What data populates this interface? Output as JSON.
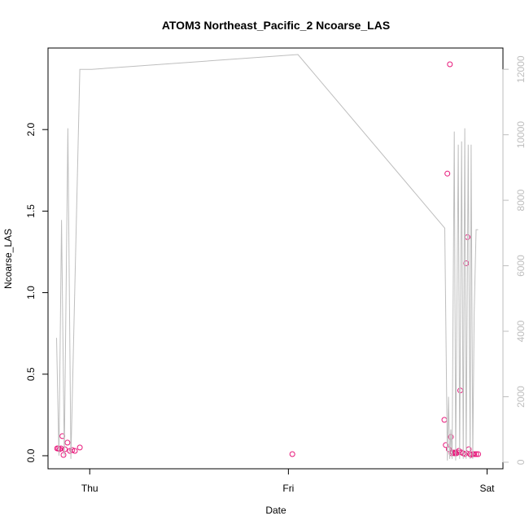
{
  "chart_data": {
    "type": "scatter",
    "title": "ATOM3 Northeast_Pacific_2 Ncoarse_LAS",
    "xlabel": "Date",
    "ylabel": "Ncoarse_LAS",
    "x_ticks": [
      {
        "label": "Thu",
        "value": 1.0
      },
      {
        "label": "Fri",
        "value": 2.0
      },
      {
        "label": "Sat",
        "value": 3.0
      }
    ],
    "xlim": [
      0.79,
      3.08
    ],
    "ylim": [
      -0.08,
      2.5
    ],
    "y_ticks": [
      0.0,
      0.5,
      1.0,
      1.5,
      2.0
    ],
    "y_tick_labels": [
      "0.0",
      "0.5",
      "1.0",
      "1.5",
      "2.0"
    ],
    "y2lim": [
      -200,
      12650
    ],
    "y2_ticks": [
      0,
      2000,
      4000,
      6000,
      8000,
      10000,
      12000
    ],
    "y2_tick_labels": [
      "0",
      "2000",
      "4000",
      "6000",
      "8000",
      "10000",
      "12000"
    ],
    "colors": {
      "points": "#e8177a",
      "line": "#bebebe",
      "axis": "#000000",
      "right_axis": "#bebebe"
    },
    "series": [
      {
        "axis": "left",
        "style": "points",
        "x": [
          0.836,
          0.842,
          0.848,
          0.855,
          0.862,
          0.868,
          0.875,
          0.888,
          0.9,
          0.912,
          0.925,
          0.95,
          2.02,
          2.785,
          2.792,
          2.8,
          2.807,
          2.813,
          2.818,
          2.822,
          2.828,
          2.835,
          2.84,
          2.845,
          2.852,
          2.858,
          2.865,
          2.872,
          2.88,
          2.888,
          2.895,
          2.902,
          2.908,
          2.915,
          2.92,
          2.928,
          2.935,
          2.945,
          2.955
        ],
        "y": [
          0.045,
          0.045,
          0.04,
          0.045,
          0.12,
          0.005,
          0.04,
          0.08,
          0.03,
          0.035,
          0.03,
          0.05,
          0.01,
          0.22,
          0.065,
          1.73,
          0.04,
          2.4,
          0.115,
          0.015,
          0.02,
          0.015,
          0.02,
          0.015,
          0.02,
          0.03,
          0.4,
          0.02,
          0.015,
          0.01,
          1.18,
          1.34,
          0.04,
          0.01,
          0.005,
          0.01,
          0.01,
          0.01,
          0.01
        ]
      },
      {
        "axis": "right",
        "style": "line",
        "x": [
          0.833,
          0.845,
          0.858,
          0.872,
          0.89,
          0.905,
          0.95,
          1.01,
          2.048,
          2.048,
          2.787,
          2.8,
          2.806,
          2.812,
          2.818,
          2.824,
          2.835,
          2.842,
          2.855,
          2.862,
          2.872,
          2.88,
          2.888,
          2.895,
          2.905,
          2.915,
          2.92,
          2.928,
          2.935,
          2.945,
          2.955,
          2.955
        ],
        "y": [
          3800,
          200,
          7400,
          200,
          10200,
          100,
          12000,
          12000,
          12450,
          12450,
          7150,
          50,
          2000,
          100,
          1000,
          100,
          10100,
          50,
          9700,
          100,
          9800,
          100,
          10200,
          100,
          9700,
          100,
          9700,
          100,
          4500,
          7100,
          7100,
          7100
        ]
      }
    ]
  }
}
